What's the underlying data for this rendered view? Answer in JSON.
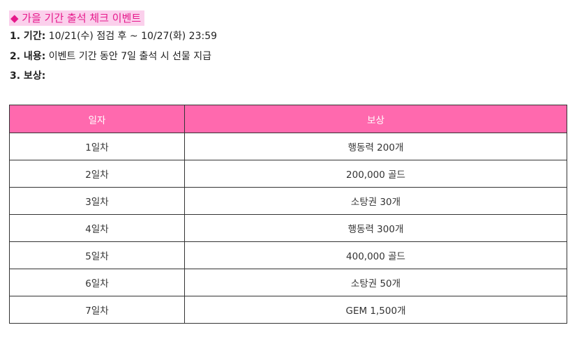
{
  "title": "◆ 가을 기간 출석 체크 이벤트",
  "info": [
    {
      "label": "1. 기간:",
      "text": " 10/21(수) 점검 후 ~ 10/27(화) 23:59"
    },
    {
      "label": "2. 내용:",
      "text": " 이벤트 기간 동안 7일 출석 시 선물 지급"
    },
    {
      "label": "3. 보상:",
      "text": ""
    }
  ],
  "table": {
    "headers": [
      "일자",
      "보상"
    ],
    "rows": [
      {
        "day": "1일차",
        "reward": "행동력 200개"
      },
      {
        "day": "2일차",
        "reward": "200,000 골드"
      },
      {
        "day": "3일차",
        "reward": "소탕권 30개"
      },
      {
        "day": "4일차",
        "reward": "행동력 300개"
      },
      {
        "day": "5일차",
        "reward": "400,000 골드"
      },
      {
        "day": "6일차",
        "reward": "소탕권 50개"
      },
      {
        "day": "7일차",
        "reward": "GEM 1,500개"
      }
    ]
  },
  "colors": {
    "title_text": "#e6198b",
    "title_highlight": "#fbd0ec",
    "header_bg": "#ff69ae",
    "header_text": "#ffffff"
  }
}
